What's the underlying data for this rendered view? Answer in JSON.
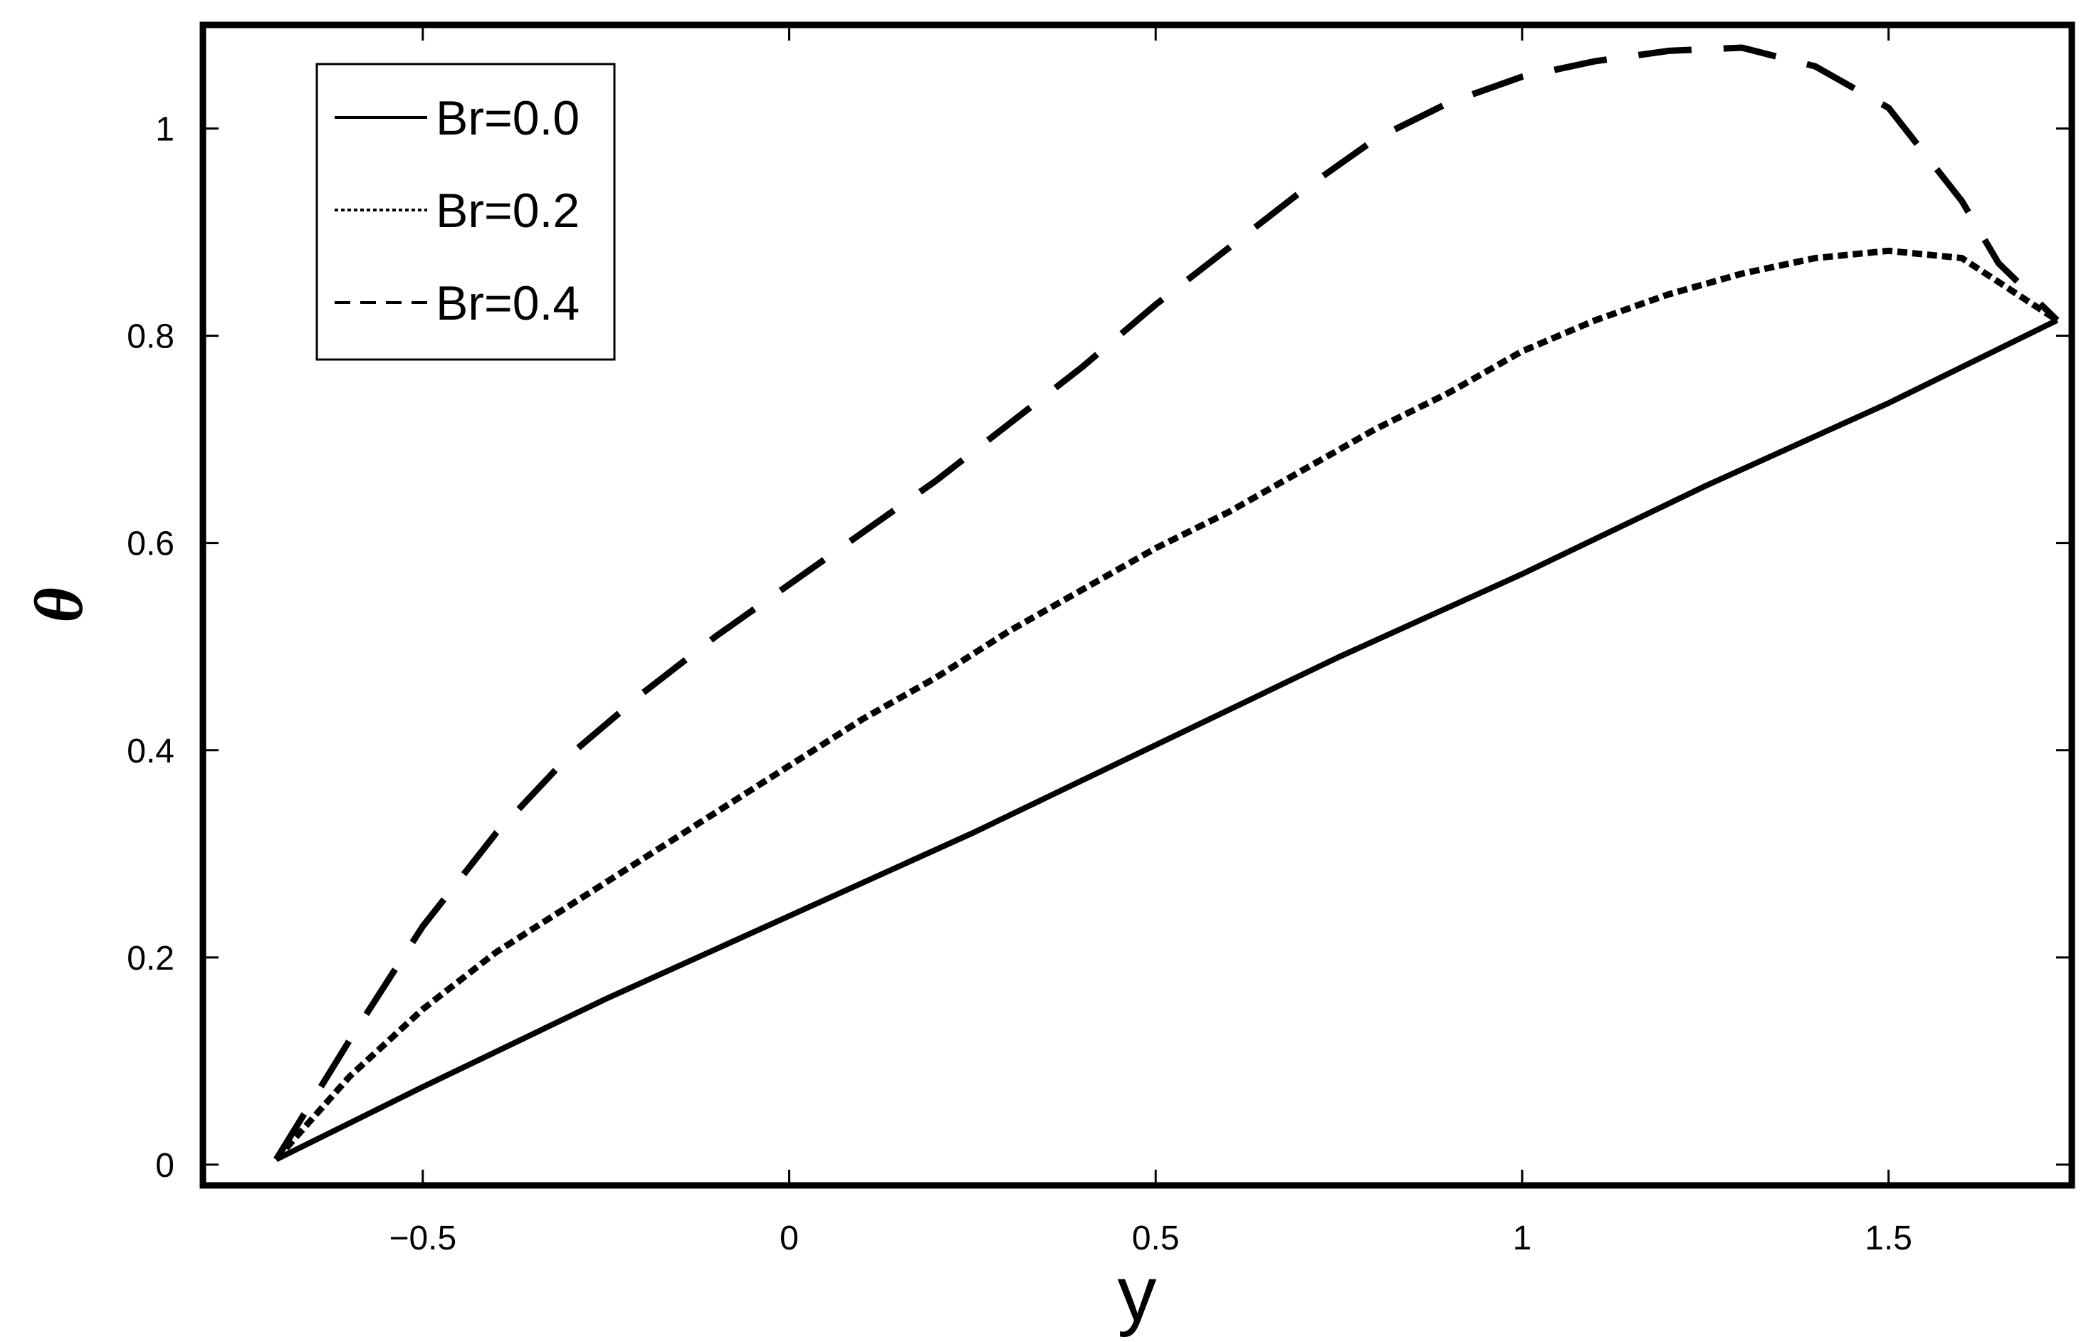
{
  "chart_data": {
    "type": "line",
    "title": "",
    "xlabel": "y",
    "ylabel": "θ",
    "xlim": [
      -0.8,
      1.75
    ],
    "ylim": [
      -0.02,
      1.1
    ],
    "xticks": [
      -0.5,
      0,
      0.5,
      1,
      1.5
    ],
    "xtick_labels": [
      "−0.5",
      "0",
      "0.5",
      "1",
      "1.5"
    ],
    "yticks": [
      0,
      0.2,
      0.4,
      0.6,
      0.8,
      1
    ],
    "ytick_labels": [
      "0",
      "0.2",
      "0.4",
      "0.6",
      "0.8",
      "1"
    ],
    "grid": false,
    "legend_position": "top-left",
    "series": [
      {
        "name": "Br=0.0",
        "style": "solid",
        "x": [
          -0.7,
          -0.5,
          -0.25,
          0,
          0.25,
          0.5,
          0.75,
          1,
          1.25,
          1.5,
          1.73
        ],
        "y": [
          0.005,
          0.075,
          0.16,
          0.24,
          0.32,
          0.405,
          0.49,
          0.57,
          0.655,
          0.735,
          0.815
        ]
      },
      {
        "name": "Br=0.2",
        "style": "dotted",
        "x": [
          -0.7,
          -0.6,
          -0.5,
          -0.4,
          -0.3,
          -0.2,
          -0.1,
          0,
          0.1,
          0.2,
          0.3,
          0.4,
          0.5,
          0.6,
          0.7,
          0.8,
          0.9,
          1,
          1.1,
          1.2,
          1.3,
          1.4,
          1.5,
          1.6,
          1.73
        ],
        "y": [
          0.005,
          0.085,
          0.15,
          0.205,
          0.25,
          0.295,
          0.34,
          0.385,
          0.43,
          0.47,
          0.515,
          0.555,
          0.595,
          0.63,
          0.67,
          0.71,
          0.745,
          0.785,
          0.815,
          0.84,
          0.86,
          0.875,
          0.882,
          0.875,
          0.815
        ]
      },
      {
        "name": "Br=0.4",
        "style": "dashed",
        "x": [
          -0.7,
          -0.6,
          -0.5,
          -0.4,
          -0.3,
          -0.2,
          -0.1,
          0,
          0.1,
          0.2,
          0.3,
          0.4,
          0.5,
          0.6,
          0.7,
          0.8,
          0.9,
          1,
          1.1,
          1.2,
          1.3,
          1.4,
          1.5,
          1.6,
          1.65,
          1.73
        ],
        "y": [
          0.005,
          0.12,
          0.23,
          0.32,
          0.395,
          0.455,
          0.51,
          0.56,
          0.61,
          0.66,
          0.715,
          0.77,
          0.83,
          0.885,
          0.94,
          0.99,
          1.025,
          1.05,
          1.065,
          1.075,
          1.078,
          1.06,
          1.02,
          0.93,
          0.87,
          0.815
        ]
      }
    ]
  }
}
